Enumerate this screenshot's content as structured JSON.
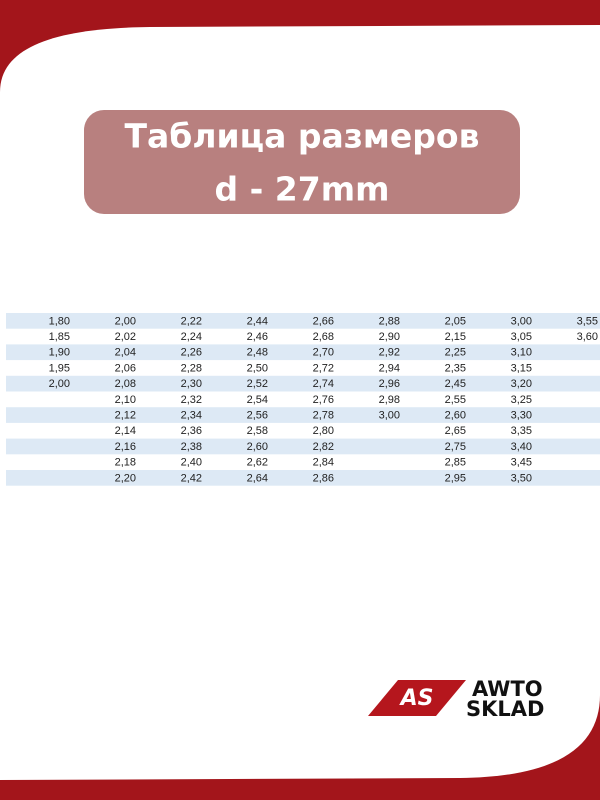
{
  "header": {
    "title_line1": "Таблица размеров",
    "title_line2": "d - 27mm"
  },
  "table": {
    "rows": [
      [
        "1,80",
        "2,00",
        "2,22",
        "2,44",
        "2,66",
        "2,88",
        "2,05",
        "3,00",
        "3,55"
      ],
      [
        "1,85",
        "2,02",
        "2,24",
        "2,46",
        "2,68",
        "2,90",
        "2,15",
        "3,05",
        "3,60"
      ],
      [
        "1,90",
        "2,04",
        "2,26",
        "2,48",
        "2,70",
        "2,92",
        "2,25",
        "3,10",
        null
      ],
      [
        "1,95",
        "2,06",
        "2,28",
        "2,50",
        "2,72",
        "2,94",
        "2,35",
        "3,15",
        null
      ],
      [
        "2,00",
        "2,08",
        "2,30",
        "2,52",
        "2,74",
        "2,96",
        "2,45",
        "3,20",
        null
      ],
      [
        null,
        "2,10",
        "2,32",
        "2,54",
        "2,76",
        "2,98",
        "2,55",
        "3,25",
        null
      ],
      [
        null,
        "2,12",
        "2,34",
        "2,56",
        "2,78",
        "3,00",
        "2,60",
        "3,30",
        null
      ],
      [
        null,
        "2,14",
        "2,36",
        "2,58",
        "2,80",
        null,
        "2,65",
        "3,35",
        null
      ],
      [
        null,
        "2,16",
        "2,38",
        "2,60",
        "2,82",
        null,
        "2,75",
        "3,40",
        null
      ],
      [
        null,
        "2,18",
        "2,40",
        "2,62",
        "2,84",
        null,
        "2,85",
        "3,45",
        null
      ],
      [
        null,
        "2,20",
        "2,42",
        "2,64",
        "2,86",
        null,
        "2,95",
        "3,50",
        null
      ]
    ]
  },
  "logo": {
    "mark": "AS",
    "line1": "AWTO",
    "line2": "SKLAD"
  }
}
